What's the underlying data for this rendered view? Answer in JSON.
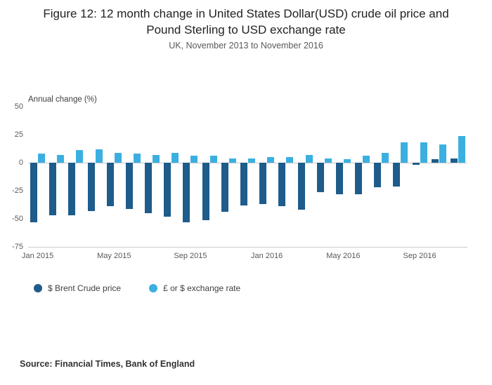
{
  "source": "Source: Financial Times, Bank of England",
  "chart_data": {
    "type": "bar",
    "title": "Figure 12: 12 month change in United States Dollar(USD) crude oil price and Pound Sterling to USD exchange rate",
    "subtitle": "UK, November 2013 to November 2016",
    "ylabel": "Annual change (%)",
    "xlabel": "",
    "ylim": [
      -75,
      50
    ],
    "yticks": [
      50,
      25,
      0,
      -25,
      -50,
      -75
    ],
    "grid": false,
    "legend_position": "bottom-left",
    "categories": [
      "Jan 2015",
      "Feb 2015",
      "Mar 2015",
      "Apr 2015",
      "May 2015",
      "Jun 2015",
      "Jul 2015",
      "Aug 2015",
      "Sep 2015",
      "Oct 2015",
      "Nov 2015",
      "Dec 2015",
      "Jan 2016",
      "Feb 2016",
      "Mar 2016",
      "Apr 2016",
      "May 2016",
      "Jun 2016",
      "Jul 2016",
      "Aug 2016",
      "Sep 2016",
      "Oct 2016",
      "Nov 2016"
    ],
    "xticks": [
      {
        "index": 0,
        "label": "Jan 2015"
      },
      {
        "index": 4,
        "label": "May 2015"
      },
      {
        "index": 8,
        "label": "Sep 2015"
      },
      {
        "index": 12,
        "label": "Jan 2016"
      },
      {
        "index": 16,
        "label": "May 2016"
      },
      {
        "index": 20,
        "label": "Sep 2016"
      }
    ],
    "series": [
      {
        "name": "$ Brent Crude price",
        "color": "#1e5c8b",
        "values": [
          -53,
          -47,
          -47,
          -43,
          -39,
          -41,
          -45,
          -48,
          -53,
          -51,
          -44,
          -38,
          -37,
          -39,
          -42,
          -26,
          -28,
          -28,
          -22,
          -21,
          -2,
          3,
          4
        ]
      },
      {
        "name": "£ or $ exchange rate",
        "color": "#3bb0e0",
        "values": [
          8,
          7,
          11,
          12,
          9,
          8,
          7,
          9,
          6,
          6,
          4,
          4,
          5,
          5,
          7,
          4,
          3,
          6,
          9,
          18,
          18,
          16,
          24
        ]
      }
    ]
  }
}
